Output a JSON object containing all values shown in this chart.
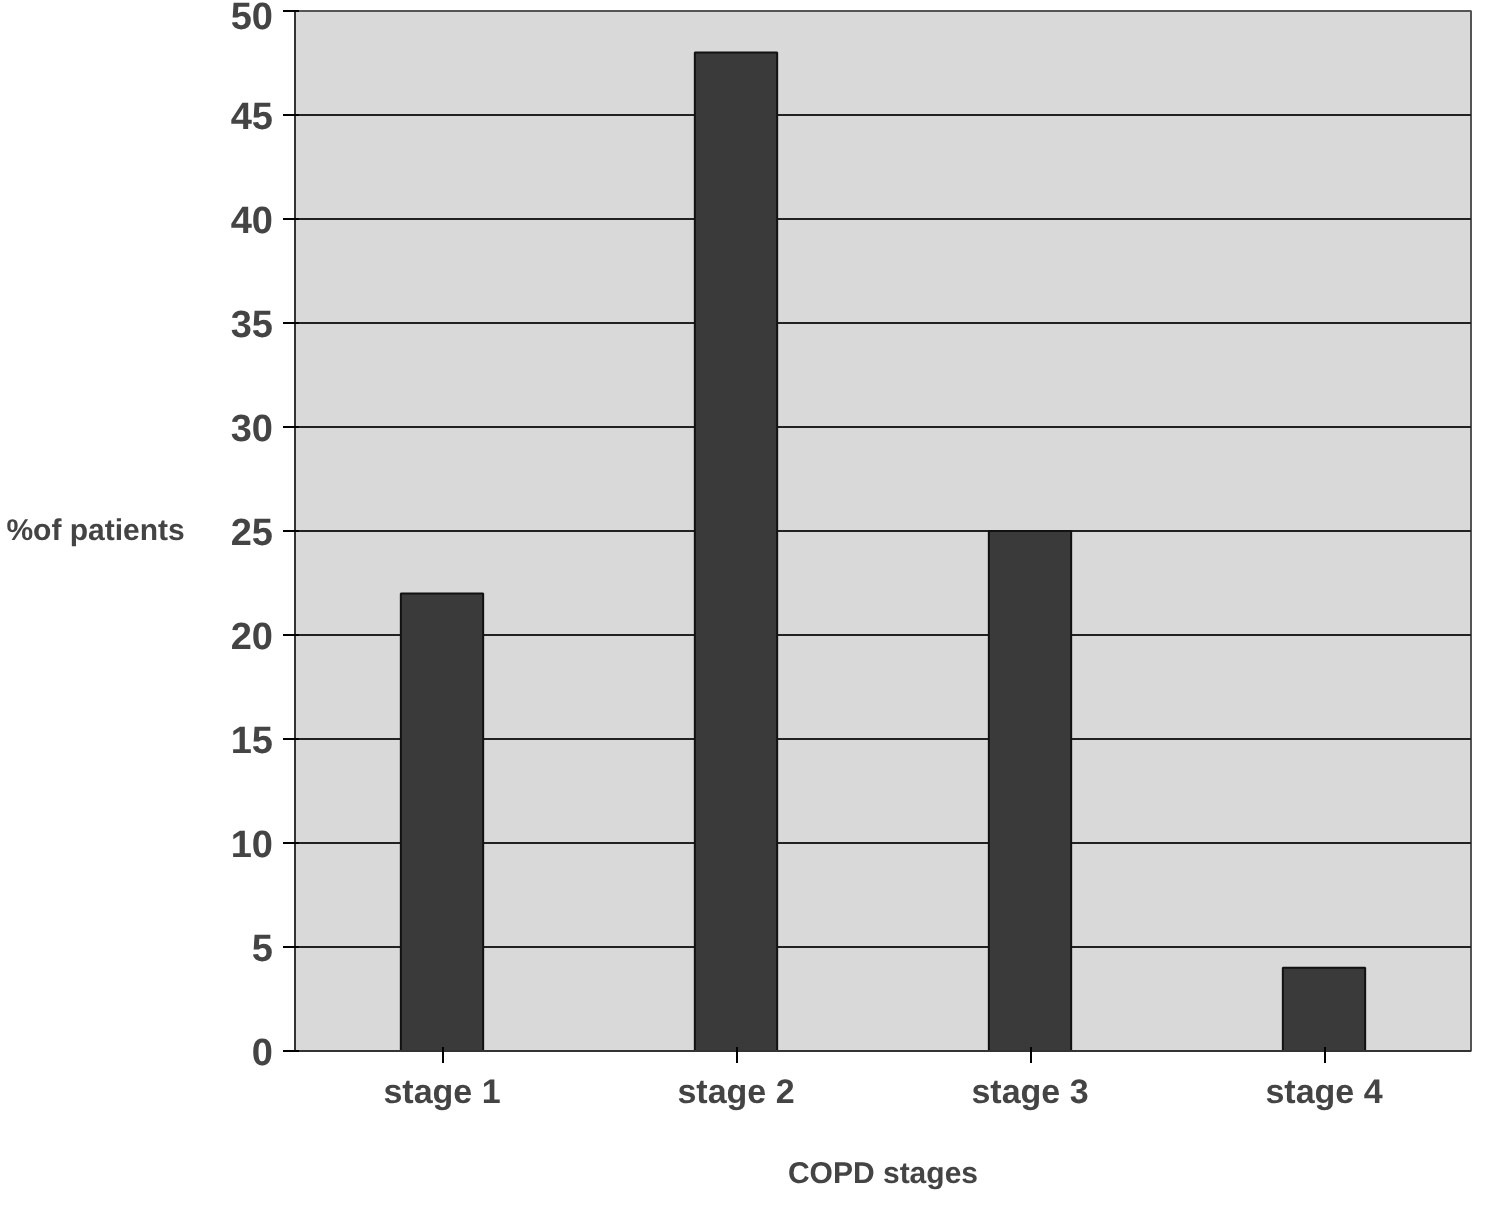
{
  "chart_data": {
    "type": "bar",
    "xlabel": "COPD stages",
    "ylabel": "%of patients",
    "categories": [
      "stage 1",
      "stage 2",
      "stage 3",
      "stage 4"
    ],
    "values": [
      22,
      48,
      25,
      4
    ],
    "color": "#3a3a3a",
    "ylim": [
      0,
      50
    ],
    "yticks": [
      0,
      5,
      10,
      15,
      20,
      25,
      30,
      35,
      40,
      45,
      50
    ],
    "grid": "y"
  }
}
